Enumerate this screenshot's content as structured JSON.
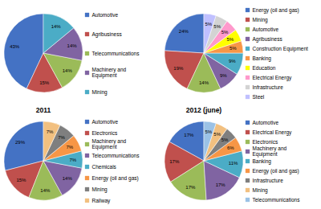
{
  "chart_data": [
    {
      "type": "pie",
      "categories": [
        "Automotive",
        "Agribusiness",
        "Telecommunications",
        "Machinery and\nEquipment",
        "Mining"
      ],
      "values": [
        43,
        15,
        14,
        14,
        14
      ],
      "value_labels": [
        "43%",
        "15%",
        "14%",
        "14%",
        "14%"
      ],
      "colors": [
        "#4472C4",
        "#C0504D",
        "#9BBB59",
        "#8064A2",
        "#4BACC6"
      ],
      "data_labels": true,
      "legend": "right"
    },
    {
      "type": "pie",
      "categories": [
        "Energy (oil and gas)",
        "Mining",
        "Automotive",
        "Agribusiness",
        "Construction Equipment",
        "Banking",
        "Education",
        "Electrical Energy",
        "Infrastructure",
        "Steel"
      ],
      "values": [
        24,
        19,
        14,
        9,
        9,
        5,
        5,
        5,
        5,
        5
      ],
      "value_labels": [
        "24%",
        "19%",
        "14%",
        "9%",
        "9%",
        "5%",
        "5%",
        "5%",
        "5%",
        "5%"
      ],
      "colors": [
        "#4472C4",
        "#C0504D",
        "#9BBB59",
        "#8064A2",
        "#4BACC6",
        "#F79646",
        "#FFFF00",
        "#FF99CC",
        "#D3D3D3",
        "#C0C0FF"
      ],
      "data_labels": true,
      "legend": "right"
    },
    {
      "type": "pie",
      "title": "2011",
      "categories": [
        "Automotive",
        "Electronics",
        "Machinery and\nEquipment",
        "Telecommunications",
        "Chemicals",
        "Energy (oil and gas)",
        "Mining",
        "Railway"
      ],
      "values": [
        29,
        15,
        14,
        14,
        7,
        7,
        7,
        7
      ],
      "value_labels": [
        "29%",
        "15%",
        "14%",
        "14%",
        "7%",
        "7%",
        "7%",
        "7%"
      ],
      "colors": [
        "#4472C4",
        "#C0504D",
        "#9BBB59",
        "#8064A2",
        "#4BACC6",
        "#F79646",
        "#7F7F7F",
        "#F2C080"
      ],
      "data_labels": true,
      "legend": "right"
    },
    {
      "type": "pie",
      "title": "2012 (june)",
      "categories": [
        "Automotive",
        "Electrical Energy",
        "Electronics",
        "Machinery and\nEquipment",
        "Banking",
        "Energy (oil and gas)",
        "Infrastructure",
        "Mining",
        "Telecommunications"
      ],
      "values": [
        17,
        17,
        17,
        17,
        11,
        6,
        5,
        5,
        5
      ],
      "value_labels": [
        "17%",
        "17%",
        "17%",
        "17%",
        "11%",
        "6%",
        "5%",
        "5%",
        "5%"
      ],
      "colors": [
        "#4472C4",
        "#C0504D",
        "#9BBB59",
        "#8064A2",
        "#4BACC6",
        "#F79646",
        "#7F7F7F",
        "#F2C080",
        "#9BC2E6"
      ],
      "data_labels": true,
      "legend": "right"
    }
  ]
}
